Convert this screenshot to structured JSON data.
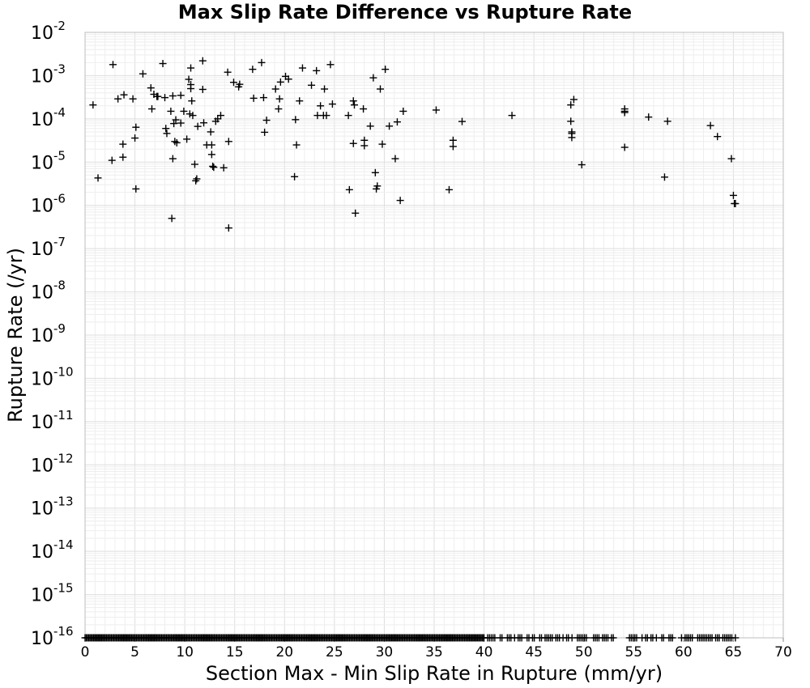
{
  "chart_data": {
    "type": "scatter",
    "title": "Max Slip Rate Difference vs Rupture Rate",
    "xlabel": "Section Max - Min Slip Rate in Rupture (mm/yr)",
    "ylabel": "Rupture Rate (/yr)",
    "xlim": [
      0,
      70
    ],
    "ylim": [
      1e-16,
      0.01
    ],
    "yscale": "log",
    "grid": true,
    "marker": "+",
    "marker_color": "#000000",
    "x_ticks": [
      "0",
      "5",
      "10",
      "15",
      "20",
      "25",
      "30",
      "35",
      "40",
      "45",
      "50",
      "55",
      "60",
      "65",
      "70"
    ],
    "y_ticks": [
      {
        "base": "10",
        "exp": "-2"
      },
      {
        "base": "10",
        "exp": "-3"
      },
      {
        "base": "10",
        "exp": "-4"
      },
      {
        "base": "10",
        "exp": "-5"
      },
      {
        "base": "10",
        "exp": "-6"
      },
      {
        "base": "10",
        "exp": "-7"
      },
      {
        "base": "10",
        "exp": "-8"
      },
      {
        "base": "10",
        "exp": "-9"
      },
      {
        "base": "10",
        "exp": "-10"
      },
      {
        "base": "10",
        "exp": "-11"
      },
      {
        "base": "10",
        "exp": "-12"
      },
      {
        "base": "10",
        "exp": "-13"
      },
      {
        "base": "10",
        "exp": "-14"
      },
      {
        "base": "10",
        "exp": "-15"
      },
      {
        "base": "10",
        "exp": "-16"
      }
    ],
    "points": [
      [
        0.8,
        0.00021
      ],
      [
        1.3,
        4.3e-06
      ],
      [
        2.7,
        1.1e-05
      ],
      [
        2.8,
        0.0018
      ],
      [
        3.3,
        0.00029
      ],
      [
        3.8,
        1.3e-05
      ],
      [
        3.8,
        2.6e-05
      ],
      [
        3.9,
        0.00036
      ],
      [
        4.8,
        0.00029
      ],
      [
        5.0,
        3.6e-05
      ],
      [
        5.1,
        6.4e-05
      ],
      [
        5.1,
        2.4e-06
      ],
      [
        5.8,
        0.0011
      ],
      [
        6.6,
        0.00052
      ],
      [
        6.7,
        0.00017
      ],
      [
        6.9,
        0.00037
      ],
      [
        7.2,
        0.00033
      ],
      [
        7.3,
        0.00033
      ],
      [
        7.8,
        0.0019
      ],
      [
        8.0,
        0.00031
      ],
      [
        8.1,
        6e-05
      ],
      [
        8.2,
        4.6e-05
      ],
      [
        8.6,
        0.00015
      ],
      [
        8.7,
        5e-07
      ],
      [
        8.8,
        0.00034
      ],
      [
        8.8,
        1.2e-05
      ],
      [
        8.9,
        7.8e-05
      ],
      [
        9.0,
        3e-05
      ],
      [
        9.1,
        9.5e-05
      ],
      [
        9.2,
        2.8e-05
      ],
      [
        9.6,
        0.00035
      ],
      [
        9.6,
        8e-05
      ],
      [
        9.9,
        0.00015
      ],
      [
        10.2,
        3.4e-05
      ],
      [
        10.4,
        0.00082
      ],
      [
        10.5,
        0.00013
      ],
      [
        10.6,
        0.0005
      ],
      [
        10.6,
        0.00062
      ],
      [
        10.6,
        0.0015
      ],
      [
        10.7,
        0.00026
      ],
      [
        10.8,
        0.00012
      ],
      [
        11.0,
        8.9e-06
      ],
      [
        11.1,
        3.7e-06
      ],
      [
        11.2,
        4.1e-06
      ],
      [
        11.3,
        6.7e-05
      ],
      [
        11.8,
        0.00048
      ],
      [
        11.8,
        0.0022
      ],
      [
        11.9,
        8.1e-05
      ],
      [
        12.2,
        2.5e-05
      ],
      [
        12.6,
        5e-05
      ],
      [
        12.7,
        2.5e-05
      ],
      [
        12.7,
        1.5e-05
      ],
      [
        12.8,
        8e-06
      ],
      [
        12.9,
        7.6e-06
      ],
      [
        13.1,
        8.8e-05
      ],
      [
        13.3,
        0.0001
      ],
      [
        13.6,
        0.00012
      ],
      [
        13.9,
        7.4e-06
      ],
      [
        14.3,
        0.0012
      ],
      [
        14.4,
        3e-05
      ],
      [
        14.4,
        3e-07
      ],
      [
        14.9,
        0.0007
      ],
      [
        15.4,
        0.00055
      ],
      [
        15.5,
        0.00063
      ],
      [
        16.8,
        0.0014
      ],
      [
        16.9,
        0.0003
      ],
      [
        17.7,
        0.002
      ],
      [
        17.9,
        0.00031
      ],
      [
        18.0,
        4.9e-05
      ],
      [
        18.2,
        9.3e-05
      ],
      [
        19.1,
        0.00049
      ],
      [
        19.4,
        0.00017
      ],
      [
        19.5,
        0.00029
      ],
      [
        19.6,
        0.00071
      ],
      [
        20.1,
        0.00096
      ],
      [
        20.4,
        0.00083
      ],
      [
        21.0,
        4.6e-06
      ],
      [
        21.1,
        9.6e-05
      ],
      [
        21.2,
        2.5e-05
      ],
      [
        21.5,
        0.00026
      ],
      [
        21.8,
        0.0015
      ],
      [
        22.7,
        0.0006
      ],
      [
        23.2,
        0.0013
      ],
      [
        23.3,
        0.00012
      ],
      [
        23.6,
        0.0002
      ],
      [
        23.9,
        0.00012
      ],
      [
        24.0,
        0.00049
      ],
      [
        24.2,
        0.00012
      ],
      [
        24.6,
        0.0018
      ],
      [
        24.8,
        0.00022
      ],
      [
        26.4,
        0.00012
      ],
      [
        26.5,
        2.3e-06
      ],
      [
        26.9,
        0.00026
      ],
      [
        26.9,
        2.7e-05
      ],
      [
        27.0,
        0.00021
      ],
      [
        27.1,
        6.6e-07
      ],
      [
        27.9,
        0.00017
      ],
      [
        28.0,
        3.2e-05
      ],
      [
        28.0,
        2.4e-05
      ],
      [
        28.6,
        6.8e-05
      ],
      [
        28.9,
        0.00089
      ],
      [
        29.1,
        5.7e-06
      ],
      [
        29.2,
        2.4e-06
      ],
      [
        29.3,
        2.8e-06
      ],
      [
        29.6,
        0.00049
      ],
      [
        29.8,
        2.6e-05
      ],
      [
        30.1,
        0.0014
      ],
      [
        30.5,
        6.8e-05
      ],
      [
        31.1,
        1.2e-05
      ],
      [
        31.3,
        8.5e-05
      ],
      [
        31.6,
        1.3e-06
      ],
      [
        31.9,
        0.00015
      ],
      [
        35.2,
        0.00016
      ],
      [
        36.5,
        2.3e-06
      ],
      [
        36.9,
        3.2e-05
      ],
      [
        36.9,
        2.3e-05
      ],
      [
        37.8,
        8.7e-05
      ],
      [
        42.8,
        0.00012
      ],
      [
        48.7,
        0.00021
      ],
      [
        48.7,
        8.8e-05
      ],
      [
        48.8,
        5e-05
      ],
      [
        48.8,
        4.6e-05
      ],
      [
        48.8,
        3.7e-05
      ],
      [
        49.0,
        0.00028
      ],
      [
        49.8,
        8.7e-06
      ],
      [
        54.1,
        0.00017
      ],
      [
        54.1,
        0.00015
      ],
      [
        54.1,
        0.00014
      ],
      [
        54.1,
        2.2e-05
      ],
      [
        56.5,
        0.00011
      ],
      [
        58.1,
        4.5e-06
      ],
      [
        58.4,
        8.8e-05
      ],
      [
        62.7,
        7e-05
      ],
      [
        63.4,
        3.9e-05
      ],
      [
        64.8,
        1.2e-05
      ],
      [
        65.0,
        1.7e-06
      ],
      [
        65.1,
        1.1e-06
      ],
      [
        65.2,
        1.1e-06
      ]
    ],
    "floor_value": 1e-16,
    "floor_x_dense": [
      0,
      40
    ],
    "floor_x_sparse": [
      40,
      65.5
    ]
  }
}
